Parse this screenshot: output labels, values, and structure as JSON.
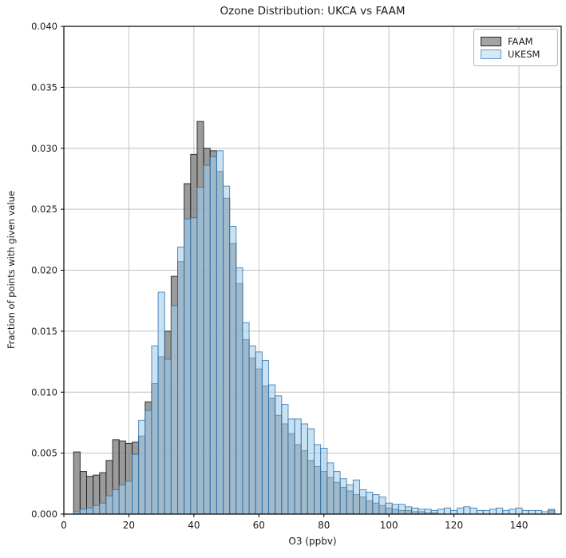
{
  "title": "Ozone Distribution: UKCA vs FAAM",
  "axes": {
    "xlabel": "O3 (ppbv)",
    "ylabel": "Fraction of points with given value",
    "xlim": [
      0,
      153
    ],
    "ylim": [
      0,
      0.04
    ],
    "xticks": [
      0,
      20,
      40,
      60,
      80,
      100,
      120,
      140
    ],
    "yticks": [
      0.0,
      0.005,
      0.01,
      0.015,
      0.02,
      0.025,
      0.03,
      0.035,
      0.04
    ],
    "ytick_decimals": 3,
    "grid": true,
    "grid_color": "#c0c0c0",
    "spine_color": "#000000"
  },
  "legend": {
    "position": "upper-right",
    "entries": [
      {
        "label": "FAAM",
        "fill": "#a3a3a3",
        "edge": "#222222"
      },
      {
        "label": "UKESM",
        "fill": "#d7e8f5",
        "edge": "#6699cc"
      }
    ]
  },
  "chart_data": {
    "type": "bar",
    "subtype": "overlapping-histograms",
    "bin_start": 3,
    "bin_width": 2,
    "x_units": "ppbv",
    "series": [
      {
        "name": "FAAM",
        "fill": "rgba(127,127,127,0.78)",
        "edge": "rgba(25,25,25,0.85)",
        "values": [
          0.0051,
          0.0035,
          0.0031,
          0.0032,
          0.0034,
          0.0044,
          0.0061,
          0.006,
          0.0058,
          0.0059,
          0.0064,
          0.0092,
          0.0107,
          0.0129,
          0.015,
          0.0195,
          0.0207,
          0.0271,
          0.0295,
          0.0322,
          0.03,
          0.0298,
          0.0281,
          0.0259,
          0.0222,
          0.0189,
          0.0143,
          0.0128,
          0.0119,
          0.0105,
          0.0095,
          0.0081,
          0.0074,
          0.0066,
          0.0057,
          0.0052,
          0.0044,
          0.0039,
          0.0035,
          0.003,
          0.0026,
          0.0022,
          0.0019,
          0.0016,
          0.0014,
          0.0011,
          0.0009,
          0.0007,
          0.0005,
          0.0004,
          0.0003,
          0.0003,
          0.0002,
          0.0002,
          0.0001,
          0.0001,
          0,
          0,
          0,
          0,
          0,
          0,
          0,
          0,
          0,
          0,
          0,
          0,
          0,
          0,
          0,
          0,
          0,
          0.0003
        ]
      },
      {
        "name": "UKESM",
        "fill": "rgba(164,206,235,0.60)",
        "edge": "rgba(43,110,170,0.78)",
        "values": [
          0.0002,
          0.0004,
          0.0005,
          0.0007,
          0.0009,
          0.0015,
          0.002,
          0.0024,
          0.0027,
          0.0049,
          0.0077,
          0.0085,
          0.0138,
          0.0182,
          0.0127,
          0.0171,
          0.0219,
          0.0242,
          0.0243,
          0.0268,
          0.0286,
          0.0293,
          0.0298,
          0.0269,
          0.0236,
          0.0202,
          0.0157,
          0.0138,
          0.0133,
          0.0126,
          0.0106,
          0.0097,
          0.009,
          0.0078,
          0.0078,
          0.0074,
          0.007,
          0.0057,
          0.0054,
          0.0042,
          0.0035,
          0.0029,
          0.0024,
          0.0028,
          0.002,
          0.0018,
          0.0016,
          0.0014,
          0.0009,
          0.0008,
          0.0008,
          0.0006,
          0.0005,
          0.0004,
          0.0004,
          0.0003,
          0.0004,
          0.0005,
          0.0003,
          0.0005,
          0.0006,
          0.0005,
          0.0003,
          0.0003,
          0.0004,
          0.0005,
          0.0003,
          0.0004,
          0.0005,
          0.0003,
          0.0003,
          0.0003,
          0.0002,
          0.0004
        ]
      }
    ]
  }
}
